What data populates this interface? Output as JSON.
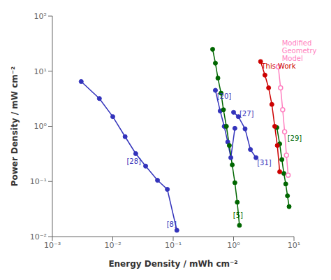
{
  "chart_data": {
    "type": "line",
    "log": true,
    "grid": false,
    "xlabel": "Energy Density / mWh cm⁻²",
    "ylabel": "Power Density / mW cm⁻²",
    "xlim": [
      0.001,
      10
    ],
    "ylim": [
      0.01,
      100
    ],
    "xticks": [
      {
        "value": 0.001,
        "label": "10⁻³"
      },
      {
        "value": 0.01,
        "label": "10⁻²"
      },
      {
        "value": 0.1,
        "label": "10⁻¹"
      },
      {
        "value": 1,
        "label": "10⁰"
      },
      {
        "value": 10,
        "label": "10¹"
      }
    ],
    "yticks": [
      {
        "value": 0.01,
        "label": "10⁻²"
      },
      {
        "value": 0.1,
        "label": "10⁻¹"
      },
      {
        "value": 1,
        "label": "10⁰"
      },
      {
        "value": 10,
        "label": "10¹"
      },
      {
        "value": 100,
        "label": "10²"
      }
    ],
    "series": [
      {
        "color": "#3333bb",
        "marker": "circle",
        "x": [
          0.003,
          0.006,
          0.01,
          0.016,
          0.024,
          0.035,
          0.055,
          0.08,
          0.115
        ],
        "values": [
          6.5,
          3.2,
          1.5,
          0.65,
          0.32,
          0.19,
          0.105,
          0.072,
          0.013
        ]
      },
      {
        "color": "#3333bb",
        "marker": "circle",
        "x": [
          0.5,
          0.6,
          0.7,
          0.8,
          0.9,
          1.05
        ],
        "values": [
          4.5,
          1.9,
          1.0,
          0.52,
          0.27,
          0.92
        ]
      },
      {
        "color": "#3333bb",
        "marker": "circle",
        "x": [
          1.0,
          1.2,
          1.55,
          1.9,
          2.35
        ],
        "values": [
          1.8,
          1.5,
          0.9,
          0.38,
          0.27
        ]
      },
      {
        "color": "#006600",
        "marker": "circle",
        "x": [
          0.45,
          0.5,
          0.55,
          0.62,
          0.68,
          0.76,
          0.85,
          0.95,
          1.05,
          1.15,
          1.25
        ],
        "values": [
          25,
          14,
          7.5,
          4.0,
          2.0,
          1.0,
          0.45,
          0.2,
          0.095,
          0.042,
          0.016
        ]
      },
      {
        "color": "#006600",
        "marker": "circle",
        "x": [
          5.2,
          5.8,
          6.3,
          6.8,
          7.3,
          7.8,
          8.3
        ],
        "values": [
          0.95,
          0.48,
          0.25,
          0.14,
          0.09,
          0.055,
          0.035
        ]
      },
      {
        "color": "#cc0000",
        "marker": "circle",
        "x": [
          2.8,
          3.3,
          3.8,
          4.3,
          4.8,
          5.3,
          5.8
        ],
        "values": [
          15.0,
          8.5,
          5.0,
          2.5,
          1.0,
          0.45,
          0.15
        ]
      },
      {
        "color": "#ff80c0",
        "marker": "open_circle",
        "x": [
          5.5,
          6.0,
          6.5,
          7.0,
          7.5,
          8.0
        ],
        "values": [
          12.0,
          5.0,
          2.0,
          0.8,
          0.3,
          0.13
        ]
      }
    ],
    "annotations": [
      {
        "text": "[28]",
        "x": 0.017,
        "y": 0.21,
        "color": "#3333bb"
      },
      {
        "text": "[8]",
        "x": 0.078,
        "y": 0.015,
        "color": "#3333bb"
      },
      {
        "text": "[20]",
        "x": 0.53,
        "y": 3.2,
        "color": "#3333bb"
      },
      {
        "text": "[27]",
        "x": 1.25,
        "y": 1.55,
        "color": "#3333bb"
      },
      {
        "text": "[31]",
        "x": 2.45,
        "y": 0.2,
        "color": "#3333bb"
      },
      {
        "text": "[5]",
        "x": 0.98,
        "y": 0.022,
        "color": "#006600"
      },
      {
        "text": "[29]",
        "x": 7.8,
        "y": 0.55,
        "color": "#006600"
      },
      {
        "text": "This Work",
        "x": 2.9,
        "y": 11.0,
        "color": "#cc0000"
      },
      {
        "text": "Modified\nGeometry\nModel",
        "x": 6.3,
        "y": 14.0,
        "color": "#ff80c0"
      }
    ]
  }
}
